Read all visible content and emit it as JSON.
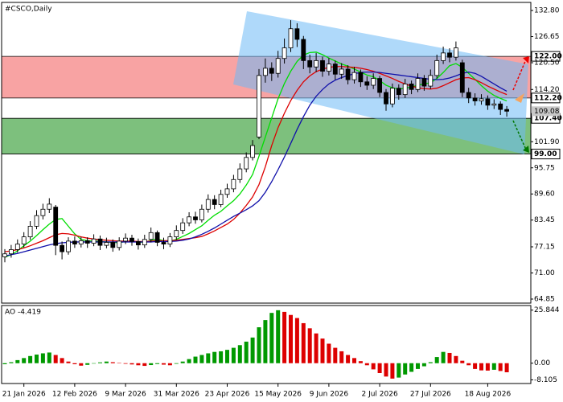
{
  "chart_data": [
    {
      "type": "candlestick",
      "title": "#CSCO,Daily",
      "categories": [
        null,
        null,
        null,
        "21 Jan 2026",
        null,
        null,
        null,
        null,
        null,
        null,
        null,
        "12 Feb 2026",
        null,
        null,
        null,
        null,
        null,
        null,
        null,
        "9 Mar 2026",
        null,
        null,
        null,
        null,
        null,
        null,
        null,
        "31 Mar 2026",
        null,
        null,
        null,
        null,
        null,
        null,
        null,
        "23 Apr 2026",
        null,
        null,
        null,
        null,
        null,
        null,
        null,
        "15 May 2026",
        null,
        null,
        null,
        null,
        null,
        null,
        null,
        "9 Jun 2026",
        null,
        null,
        null,
        null,
        null,
        null,
        null,
        "2 Jul 2026",
        null,
        null,
        null,
        null,
        null,
        null,
        null,
        "27 Jul 2026",
        null,
        null,
        null,
        null,
        null,
        null,
        null,
        null,
        "18 Aug 2026",
        null,
        null,
        null
      ],
      "open": [
        74.8,
        75.5,
        76.5,
        77.8,
        79.5,
        82.0,
        84.5,
        86.0,
        86.5,
        77.5,
        76.0,
        78.5,
        77.8,
        78.6,
        78.0,
        79.0,
        77.5,
        78.2,
        77.0,
        78.5,
        79.2,
        78.4,
        77.6,
        78.9,
        80.5,
        78.2,
        77.8,
        79.5,
        81.0,
        82.8,
        84.2,
        83.5,
        86.0,
        88.3,
        87.1,
        89.5,
        90.8,
        93.0,
        95.5,
        98.2,
        103.0,
        117.5,
        119.2,
        118.0,
        121.5,
        124.0,
        128.5,
        126.0,
        121.0,
        119.5,
        121.0,
        118.5,
        120.2,
        117.8,
        119.0,
        116.5,
        118.2,
        116.0,
        115.2,
        116.8,
        113.5,
        110.8,
        114.5,
        113.0,
        115.5,
        114.2,
        116.8,
        115.0,
        117.5,
        121.0,
        122.8,
        121.8,
        120.5,
        113.5,
        112.2,
        111.5,
        112.0,
        110.5,
        110.8,
        109.5
      ],
      "high": [
        76.6,
        77.6,
        78.9,
        80.6,
        83.2,
        85.8,
        87.3,
        88.6,
        87.0,
        78.4,
        79.4,
        79.6,
        79.5,
        79.4,
        80.1,
        79.8,
        79.3,
        78.9,
        79.4,
        80.3,
        80.0,
        79.1,
        80.0,
        81.7,
        81.0,
        79.3,
        80.4,
        82.2,
        83.9,
        85.3,
        85.4,
        87.1,
        89.5,
        89.3,
        90.6,
        92.0,
        94.1,
        96.8,
        99.4,
        102.3,
        119.0,
        121.5,
        120.6,
        123.3,
        126.2,
        130.5,
        129.8,
        126.8,
        122.4,
        122.8,
        121.9,
        121.6,
        121.0,
        120.4,
        119.9,
        119.5,
        118.9,
        117.3,
        118.0,
        117.4,
        114.3,
        115.6,
        115.4,
        116.7,
        116.3,
        118.0,
        117.6,
        118.9,
        122.4,
        124.3,
        123.9,
        125.5,
        121.2,
        114.6,
        113.3,
        113.1,
        112.8,
        111.9,
        111.4,
        110.3
      ],
      "low": [
        73.5,
        74.6,
        75.8,
        77.0,
        78.8,
        81.3,
        83.6,
        85.1,
        75.2,
        74.2,
        75.3,
        76.9,
        77.0,
        76.9,
        77.3,
        76.4,
        76.8,
        76.0,
        76.3,
        77.8,
        77.4,
        76.5,
        76.9,
        78.2,
        77.3,
        76.6,
        77.1,
        78.8,
        80.2,
        82.0,
        82.6,
        82.9,
        85.2,
        86.0,
        86.5,
        88.7,
        90.0,
        92.2,
        94.7,
        97.5,
        102.5,
        115.8,
        116.2,
        117.0,
        120.3,
        123.0,
        124.2,
        119.0,
        118.0,
        118.3,
        117.2,
        117.5,
        116.5,
        116.7,
        115.4,
        115.6,
        114.8,
        114.1,
        114.3,
        112.4,
        109.2,
        110.0,
        111.8,
        112.2,
        113.1,
        113.6,
        113.9,
        114.3,
        116.8,
        120.2,
        120.6,
        121.0,
        112.4,
        111.0,
        110.4,
        110.6,
        109.4,
        109.6,
        108.2,
        107.8
      ],
      "close": [
        75.5,
        76.5,
        77.8,
        79.5,
        82.0,
        84.5,
        86.0,
        87.2,
        77.5,
        76.0,
        78.5,
        77.8,
        78.6,
        78.0,
        79.0,
        77.5,
        78.2,
        77.0,
        78.5,
        79.2,
        78.4,
        77.6,
        78.9,
        80.5,
        78.2,
        77.8,
        79.5,
        81.0,
        82.8,
        84.2,
        83.5,
        86.0,
        88.3,
        87.1,
        89.5,
        90.8,
        93.0,
        95.5,
        98.2,
        101.0,
        117.5,
        119.2,
        118.0,
        121.5,
        124.0,
        128.5,
        126.0,
        121.0,
        119.5,
        121.0,
        118.5,
        120.2,
        117.8,
        119.0,
        116.5,
        118.2,
        116.0,
        115.2,
        116.8,
        113.5,
        110.8,
        114.5,
        113.0,
        115.5,
        114.2,
        116.8,
        115.0,
        117.5,
        121.0,
        122.8,
        121.8,
        124.0,
        113.5,
        112.2,
        111.5,
        112.0,
        110.5,
        110.8,
        109.5,
        109.08
      ],
      "up_color": "#ffffff",
      "down_color": "#000000",
      "series": [
        {
          "color": "#00dd00",
          "values": [
            74.7,
            75.3,
            76.2,
            77.4,
            78.5,
            79.8,
            81.2,
            82.5,
            83.6,
            83.8,
            82.0,
            80.2,
            78.9,
            78.6,
            78.5,
            78.4,
            78.3,
            78.2,
            78.1,
            78.4,
            78.5,
            78.3,
            78.2,
            78.7,
            79.0,
            78.6,
            78.5,
            78.9,
            79.6,
            80.3,
            81.2,
            82.1,
            83.4,
            84.6,
            85.5,
            86.8,
            88.0,
            89.6,
            91.7,
            94.2,
            98.5,
            103.0,
            107.5,
            112.0,
            115.6,
            118.5,
            120.8,
            122.3,
            122.9,
            123.0,
            122.4,
            121.6,
            120.9,
            120.2,
            119.7,
            119.0,
            118.3,
            117.6,
            117.2,
            116.3,
            115.2,
            114.6,
            114.3,
            114.5,
            114.8,
            115.2,
            115.5,
            115.8,
            116.8,
            118.2,
            119.8,
            120.3,
            119.4,
            118.0,
            116.6,
            115.1,
            113.8,
            112.8,
            112.1,
            111.5
          ]
        },
        {
          "color": "#dd0000",
          "values": [
            76.0,
            76.2,
            76.5,
            76.9,
            77.4,
            78.0,
            78.6,
            79.3,
            80.0,
            80.3,
            80.2,
            79.9,
            79.5,
            79.2,
            79.0,
            78.8,
            78.7,
            78.6,
            78.5,
            78.5,
            78.5,
            78.4,
            78.4,
            78.5,
            78.6,
            78.6,
            78.6,
            78.7,
            78.9,
            79.1,
            79.3,
            79.6,
            80.2,
            80.9,
            81.7,
            82.5,
            83.6,
            85.1,
            86.9,
            88.9,
            91.8,
            96.0,
            101.0,
            105.2,
            108.6,
            111.6,
            114.0,
            116.0,
            117.4,
            118.4,
            119.0,
            119.4,
            119.6,
            119.6,
            119.5,
            119.4,
            119.2,
            118.9,
            118.5,
            118.0,
            117.4,
            116.8,
            116.1,
            115.5,
            115.0,
            114.6,
            114.4,
            114.3,
            114.5,
            115.1,
            115.8,
            116.5,
            116.9,
            117.0,
            116.5,
            115.8,
            115.0,
            114.3,
            113.6,
            113.0
          ]
        },
        {
          "color": "#1010aa",
          "values": [
            75.0,
            75.3,
            75.6,
            76.0,
            76.4,
            76.8,
            77.2,
            77.6,
            77.9,
            78.1,
            78.2,
            78.3,
            78.3,
            78.3,
            78.3,
            78.3,
            78.3,
            78.3,
            78.3,
            78.3,
            78.3,
            78.3,
            78.3,
            78.3,
            78.4,
            78.4,
            78.4,
            78.5,
            78.7,
            79.0,
            79.5,
            80.1,
            80.8,
            81.6,
            82.5,
            83.4,
            84.3,
            85.1,
            85.9,
            86.8,
            88.0,
            90.0,
            92.5,
            95.3,
            98.3,
            101.5,
            104.8,
            107.8,
            110.5,
            112.6,
            114.2,
            115.5,
            116.4,
            117.0,
            117.5,
            117.9,
            118.2,
            118.3,
            118.3,
            118.2,
            118.0,
            117.8,
            117.6,
            117.4,
            117.2,
            117.0,
            116.8,
            116.6,
            116.5,
            116.6,
            116.9,
            117.4,
            118.0,
            118.3,
            118.0,
            117.3,
            116.4,
            115.5,
            114.6,
            113.8
          ]
        }
      ],
      "ylim": [
        63.9,
        134.7
      ],
      "yticks": [
        {
          "value": 132.8,
          "label": "132.80"
        },
        126.65,
        {
          "value": 120.5,
          "label": "120.50"
        },
        {
          "value": 114.2,
          "label": "114.20"
        },
        {
          "value": 101.9,
          "label": "101.90"
        },
        95.75,
        {
          "value": 89.6,
          "label": "89.60"
        },
        83.45,
        77.15,
        {
          "value": 71,
          "label": "71.00"
        },
        64.85
      ],
      "last_price": 109.08,
      "zones": [
        {
          "color": "#f8a3a3",
          "levels": [
            {
              "value": 122,
              "label": "122.00"
            },
            {
              "value": 112.2,
              "label": "112.20"
            }
          ]
        },
        {
          "color": "#7dc07d",
          "levels": [
            {
              "value": 107.4,
              "label": "107.40"
            },
            {
              "value": 99,
              "label": "99.00"
            }
          ]
        }
      ]
    },
    {
      "type": "bar",
      "title": "AO -4.419",
      "values": [
        -0.5,
        0.5,
        1.5,
        2.5,
        3.5,
        4.2,
        4.8,
        5.2,
        4.0,
        2.5,
        0.8,
        -0.5,
        -1.2,
        -0.8,
        -0.2,
        0.4,
        0.8,
        0.5,
        0.1,
        -0.3,
        -0.6,
        -1.0,
        -1.3,
        -0.9,
        -0.4,
        -0.7,
        -1.0,
        -0.3,
        0.8,
        2.0,
        3.2,
        4.0,
        4.8,
        5.5,
        5.8,
        6.5,
        7.5,
        8.8,
        10.5,
        12.5,
        17.5,
        21.0,
        24.5,
        25.8,
        25.0,
        23.5,
        22.0,
        19.5,
        17.0,
        14.5,
        12.0,
        9.5,
        7.5,
        5.8,
        4.0,
        2.5,
        1.0,
        -1.0,
        -3.0,
        -4.8,
        -6.5,
        -7.5,
        -7.0,
        -5.5,
        -4.2,
        -2.8,
        -1.5,
        0.5,
        3.0,
        5.5,
        5.0,
        3.5,
        1.2,
        -1.0,
        -2.8,
        -3.5,
        -3.6,
        -3.2,
        -3.8,
        -4.419
      ],
      "up_color": "#009900",
      "down_color": "#dd0000",
      "ylim": [
        -9.5,
        27.7
      ],
      "yticks": [
        25.844,
        {
          "value": 0,
          "label": "0.00"
        },
        -8.105
      ]
    }
  ]
}
